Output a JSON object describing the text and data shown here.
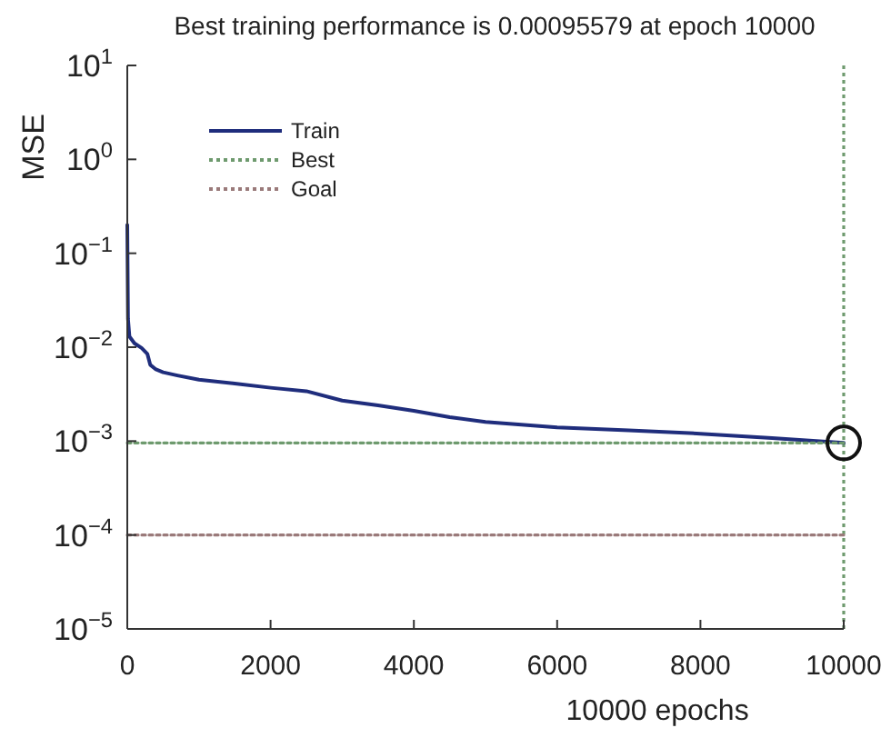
{
  "chart_data": {
    "type": "line",
    "title": "Best training performance is 0.00095579 at epoch 10000",
    "xlabel": "10000 epochs",
    "ylabel": "MSE",
    "log": "y",
    "grid": false,
    "legend": "top left",
    "xlim": [
      0,
      10000
    ],
    "xticks": [
      0,
      2000,
      4000,
      6000,
      8000,
      10000
    ],
    "ylim": [
      1e-05,
      10
    ],
    "yticks": [
      {
        "value": 1e-05,
        "label": "10$^{−5}$"
      },
      {
        "value": 0.0001,
        "label": "10$^{−4}$"
      },
      {
        "value": 0.001,
        "label": "10$^{−3}$"
      },
      {
        "value": 0.01,
        "label": "10$^{−2}$"
      },
      {
        "value": 0.1,
        "label": "10$^{−1}$"
      },
      {
        "value": 1,
        "label": "10$^{0}$"
      },
      {
        "value": 10,
        "label": "10$^{1}$"
      }
    ],
    "ref_lines": [
      {
        "axis": "x",
        "value": 10000,
        "color": "#6e9a6e",
        "line_style": "dotted"
      }
    ],
    "series": [
      {
        "name": "Train",
        "color": "#1f2d7c",
        "line_style": "solid",
        "x": [
          0,
          10,
          30,
          100,
          200,
          280,
          320,
          400,
          500,
          700,
          1000,
          1500,
          2000,
          2500,
          3000,
          3500,
          4000,
          4500,
          5000,
          5500,
          6000,
          7000,
          8000,
          9000,
          10000
        ],
        "values": [
          0.2,
          0.02,
          0.013,
          0.011,
          0.0098,
          0.0085,
          0.0065,
          0.0058,
          0.0054,
          0.005,
          0.0045,
          0.0041,
          0.0037,
          0.0034,
          0.0027,
          0.0024,
          0.0021,
          0.0018,
          0.0016,
          0.0015,
          0.0014,
          0.0013,
          0.0012,
          0.00108,
          0.00095579
        ]
      },
      {
        "name": "Best",
        "type": "line",
        "color": "#6e9a6e",
        "line_style": "dotted",
        "x": [
          0,
          10000
        ],
        "values": [
          0.00095579,
          0.00095579
        ]
      },
      {
        "name": "Goal",
        "type": "line",
        "color": "#9a7a7a",
        "line_style": "dotted",
        "x": [
          0,
          10000
        ],
        "values": [
          0.0001,
          0.0001
        ]
      },
      {
        "type": "scatter",
        "color": "#111111",
        "marker": "circle",
        "x": [
          10000
        ],
        "values": [
          0.00095579
        ]
      }
    ]
  }
}
